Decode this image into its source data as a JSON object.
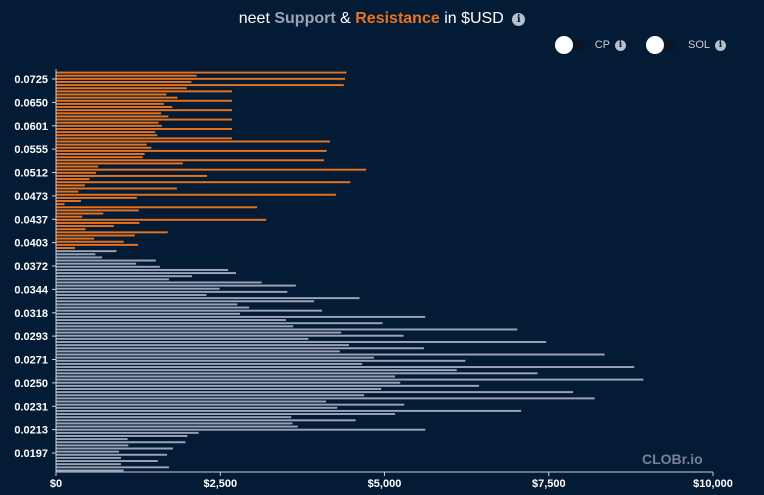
{
  "title": {
    "token": "neet",
    "support": "Support",
    "amp": "&",
    "resistance": "Resistance",
    "currency": "in $USD"
  },
  "toggles": [
    {
      "label": "CP",
      "on": false
    },
    {
      "label": "SOL",
      "on": false
    }
  ],
  "watermark": "CLOBr.io",
  "colors": {
    "background": "#041b35",
    "resistance": "#e8731c",
    "support": "#9aa4b6",
    "text": "#ffffff"
  },
  "chart_data": {
    "type": "bar",
    "orientation": "horizontal",
    "title": "neet Support & Resistance in $USD",
    "xlabel": "",
    "ylabel": "",
    "xlim": [
      0,
      10000
    ],
    "x_ticks": [
      "$0",
      "$2,500",
      "$5,000",
      "$7,500",
      "$10,000"
    ],
    "x_tick_values": [
      0,
      2500,
      5000,
      7500,
      10000
    ],
    "y_ticks": [
      "0.0725",
      "0.0650",
      "0.0601",
      "0.0555",
      "0.0512",
      "0.0473",
      "0.0437",
      "0.0403",
      "0.0372",
      "0.0344",
      "0.0318",
      "0.0293",
      "0.0271",
      "0.0250",
      "0.0231",
      "0.0213",
      "0.0197"
    ],
    "series": [
      {
        "name": "Resistance",
        "values": [
          4420,
          2140,
          4400,
          2060,
          4380,
          1990,
          2680,
          1680,
          1850,
          2680,
          1640,
          1770,
          2680,
          1600,
          1710,
          2680,
          1560,
          1610,
          2680,
          1510,
          1540,
          2680,
          4170,
          1380,
          1450,
          4120,
          1350,
          1320,
          4080,
          1930,
          640,
          4720,
          610,
          2300,
          510,
          4480,
          440,
          1840,
          340,
          4260,
          1230,
          380,
          130,
          3060,
          1260,
          720,
          400,
          3200,
          1270,
          880,
          450,
          1700,
          1200,
          580,
          1030,
          1250,
          290
        ]
      },
      {
        "name": "Support",
        "values": [
          920,
          600,
          700,
          1520,
          1220,
          1580,
          2620,
          2740,
          2070,
          1720,
          3130,
          3650,
          2490,
          3520,
          2290,
          4620,
          3930,
          2760,
          2940,
          4050,
          2800,
          5620,
          3500,
          4970,
          3610,
          7020,
          4340,
          5290,
          3840,
          7460,
          4460,
          5600,
          4320,
          8350,
          4840,
          6230,
          4660,
          8800,
          6100,
          7330,
          5160,
          8940,
          5240,
          6440,
          4950,
          7870,
          4690,
          8200,
          4110,
          5300,
          4280,
          7080,
          5160,
          3580,
          4560,
          3600,
          3680,
          5620,
          2170,
          2000,
          1090,
          1970,
          1100,
          1780,
          960,
          1690,
          990,
          1550,
          990,
          1720,
          1030
        ]
      }
    ],
    "legend": "top-right"
  }
}
